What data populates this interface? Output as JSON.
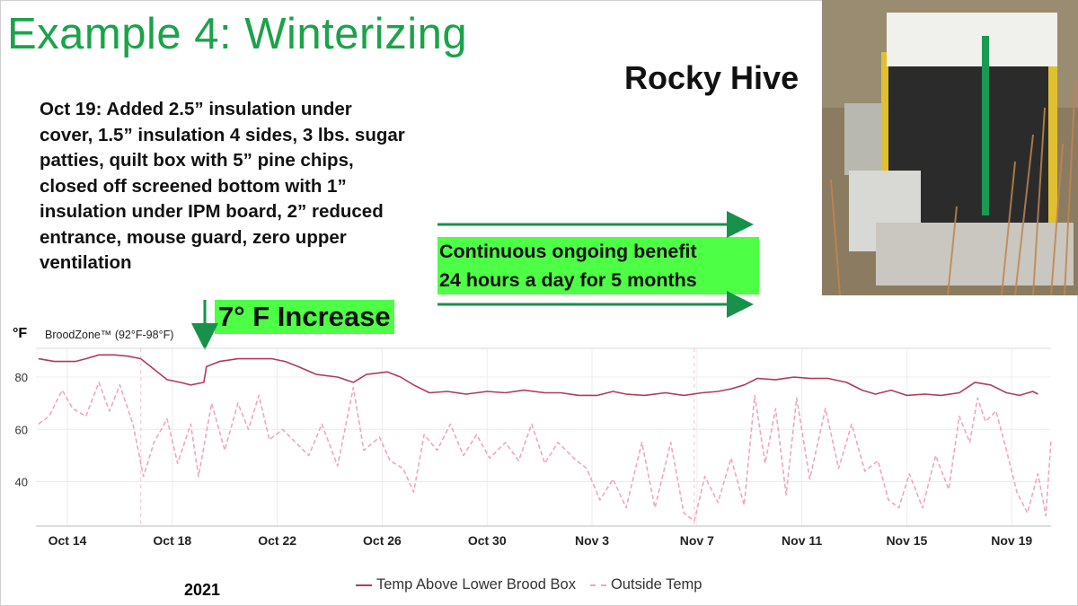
{
  "slide": {
    "title": "Example 4: Winterizing",
    "hive_name": "Rocky Hive",
    "notes": "Oct 19: Added 2.5” insulation under cover, 1.5” insulation 4 sides, 3 lbs. sugar patties, quilt box with 5” pine chips, closed off screened bottom with 1” insulation under IPM board, 2” reduced entrance, mouse guard, zero upper ventilation",
    "benefit_line1": "Continuous ongoing benefit",
    "benefit_line2": "24 hours a day for 5 months",
    "increase_label": "7° F Increase",
    "year": "2021",
    "colors": {
      "title": "#1aa34a",
      "highlight": "#4dff45",
      "arrow": "#16924a"
    }
  },
  "chart_data": {
    "type": "line",
    "ylabel": "°F",
    "band_label": "BroodZone™ (92°F-98°F)",
    "ylim": [
      23,
      91
    ],
    "yticks": [
      40,
      60,
      80
    ],
    "xlim": [
      12.8,
      51.5
    ],
    "xticks": [
      {
        "x": 14,
        "label": "Oct 14"
      },
      {
        "x": 18,
        "label": "Oct 18"
      },
      {
        "x": 22,
        "label": "Oct 22"
      },
      {
        "x": 26,
        "label": "Oct 26"
      },
      {
        "x": 30,
        "label": "Oct 30"
      },
      {
        "x": 34,
        "label": "Nov 3"
      },
      {
        "x": 38,
        "label": "Nov 7"
      },
      {
        "x": 42,
        "label": "Nov 11"
      },
      {
        "x": 46,
        "label": "Nov 15"
      },
      {
        "x": 50,
        "label": "Nov 19"
      }
    ],
    "reference_lines_x": [
      16.8,
      37.9
    ],
    "event_x": 19.2,
    "grid": true,
    "legend_position": "bottom",
    "series": [
      {
        "name": "Temp Above Lower Brood Box",
        "color": "#b03a5c",
        "style": "solid",
        "points": [
          [
            12.9,
            87
          ],
          [
            13.5,
            86
          ],
          [
            14.3,
            86
          ],
          [
            14.7,
            87
          ],
          [
            15.2,
            88.5
          ],
          [
            15.8,
            88.5
          ],
          [
            16.3,
            88
          ],
          [
            16.8,
            87
          ],
          [
            17.3,
            83
          ],
          [
            17.8,
            79
          ],
          [
            18.3,
            78
          ],
          [
            18.7,
            77
          ],
          [
            19.2,
            78
          ],
          [
            19.3,
            84
          ],
          [
            19.8,
            86
          ],
          [
            20.5,
            87
          ],
          [
            21.2,
            87
          ],
          [
            21.8,
            87
          ],
          [
            22.3,
            86
          ],
          [
            22.8,
            84
          ],
          [
            23.5,
            81
          ],
          [
            24.3,
            80
          ],
          [
            24.9,
            78
          ],
          [
            25.4,
            81
          ],
          [
            26.2,
            82
          ],
          [
            26.7,
            80
          ],
          [
            27.2,
            77
          ],
          [
            27.8,
            74
          ],
          [
            28.5,
            74.5
          ],
          [
            29.2,
            73.5
          ],
          [
            30.0,
            74.5
          ],
          [
            30.7,
            74
          ],
          [
            31.4,
            75
          ],
          [
            32.2,
            74
          ],
          [
            32.8,
            74
          ],
          [
            33.5,
            73
          ],
          [
            34.2,
            73
          ],
          [
            34.8,
            74.5
          ],
          [
            35.3,
            73.5
          ],
          [
            36.0,
            73
          ],
          [
            36.8,
            74
          ],
          [
            37.5,
            73
          ],
          [
            38.2,
            74
          ],
          [
            38.8,
            74.5
          ],
          [
            39.3,
            75.5
          ],
          [
            39.8,
            77
          ],
          [
            40.3,
            79.5
          ],
          [
            41.0,
            79
          ],
          [
            41.7,
            80
          ],
          [
            42.3,
            79.5
          ],
          [
            43.0,
            79.5
          ],
          [
            43.7,
            78
          ],
          [
            44.3,
            75
          ],
          [
            44.8,
            73.5
          ],
          [
            45.4,
            75
          ],
          [
            46.0,
            73
          ],
          [
            46.7,
            73.5
          ],
          [
            47.3,
            73
          ],
          [
            48.0,
            74
          ],
          [
            48.6,
            78
          ],
          [
            49.2,
            77
          ],
          [
            49.8,
            74
          ],
          [
            50.3,
            73
          ],
          [
            50.8,
            74.5
          ],
          [
            51.0,
            73.5
          ]
        ]
      },
      {
        "name": "Outside Temp",
        "color": "#f0a6bf",
        "style": "dashed",
        "points": [
          [
            12.9,
            62
          ],
          [
            13.3,
            65
          ],
          [
            13.8,
            75
          ],
          [
            14.2,
            68
          ],
          [
            14.7,
            65
          ],
          [
            15.2,
            78
          ],
          [
            15.6,
            67
          ],
          [
            16.0,
            77
          ],
          [
            16.5,
            62
          ],
          [
            16.9,
            42
          ],
          [
            17.3,
            55
          ],
          [
            17.8,
            64
          ],
          [
            18.2,
            47
          ],
          [
            18.7,
            62
          ],
          [
            19.0,
            42
          ],
          [
            19.5,
            70
          ],
          [
            20.0,
            52
          ],
          [
            20.5,
            70
          ],
          [
            20.9,
            60
          ],
          [
            21.3,
            73
          ],
          [
            21.7,
            56
          ],
          [
            22.2,
            60
          ],
          [
            22.7,
            55
          ],
          [
            23.2,
            50
          ],
          [
            23.7,
            62
          ],
          [
            24.3,
            46
          ],
          [
            24.9,
            76
          ],
          [
            25.3,
            52
          ],
          [
            25.9,
            57
          ],
          [
            26.3,
            48
          ],
          [
            26.8,
            45
          ],
          [
            27.2,
            36
          ],
          [
            27.6,
            58
          ],
          [
            28.1,
            52
          ],
          [
            28.6,
            62
          ],
          [
            29.1,
            50
          ],
          [
            29.6,
            58
          ],
          [
            30.1,
            49
          ],
          [
            30.7,
            55
          ],
          [
            31.2,
            48
          ],
          [
            31.7,
            62
          ],
          [
            32.2,
            47
          ],
          [
            32.7,
            55
          ],
          [
            33.3,
            49
          ],
          [
            33.8,
            45
          ],
          [
            34.3,
            33
          ],
          [
            34.8,
            41
          ],
          [
            35.3,
            30
          ],
          [
            35.9,
            55
          ],
          [
            36.4,
            30
          ],
          [
            37.0,
            55
          ],
          [
            37.5,
            28
          ],
          [
            37.9,
            25
          ],
          [
            38.3,
            42
          ],
          [
            38.8,
            32
          ],
          [
            39.3,
            49
          ],
          [
            39.8,
            31
          ],
          [
            40.2,
            73
          ],
          [
            40.6,
            47
          ],
          [
            41.0,
            68
          ],
          [
            41.4,
            35
          ],
          [
            41.8,
            72
          ],
          [
            42.3,
            41
          ],
          [
            42.9,
            68
          ],
          [
            43.4,
            45
          ],
          [
            43.9,
            62
          ],
          [
            44.4,
            44
          ],
          [
            44.9,
            48
          ],
          [
            45.3,
            33
          ],
          [
            45.7,
            30
          ],
          [
            46.1,
            43
          ],
          [
            46.6,
            30
          ],
          [
            47.1,
            50
          ],
          [
            47.6,
            37
          ],
          [
            48.0,
            65
          ],
          [
            48.4,
            55
          ],
          [
            48.7,
            72
          ],
          [
            49.0,
            63
          ],
          [
            49.4,
            67
          ],
          [
            49.8,
            52
          ],
          [
            50.2,
            36
          ],
          [
            50.6,
            28
          ],
          [
            51.0,
            43
          ],
          [
            51.3,
            27
          ],
          [
            51.5,
            56
          ]
        ]
      }
    ]
  }
}
